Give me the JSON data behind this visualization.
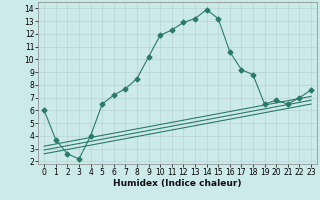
{
  "xlabel": "Humidex (Indice chaleur)",
  "ylabel": "",
  "xlim": [
    -0.5,
    23.5
  ],
  "ylim": [
    1.8,
    14.5
  ],
  "xticks": [
    0,
    1,
    2,
    3,
    4,
    5,
    6,
    7,
    8,
    9,
    10,
    11,
    12,
    13,
    14,
    15,
    16,
    17,
    18,
    19,
    20,
    21,
    22,
    23
  ],
  "yticks": [
    2,
    3,
    4,
    5,
    6,
    7,
    8,
    9,
    10,
    11,
    12,
    13,
    14
  ],
  "bg_color": "#cdeaea",
  "grid_color": "#b8d4d4",
  "line_color": "#2a7a6a",
  "main_curve_x": [
    0,
    1,
    2,
    3,
    4,
    5,
    6,
    7,
    8,
    9,
    10,
    11,
    12,
    13,
    14,
    15,
    16,
    17,
    18,
    19,
    20,
    21,
    22,
    23
  ],
  "main_curve_y": [
    6.0,
    3.7,
    2.6,
    2.2,
    4.0,
    6.5,
    7.2,
    7.7,
    8.5,
    10.2,
    11.9,
    12.3,
    12.9,
    13.2,
    13.9,
    13.2,
    10.6,
    9.2,
    8.8,
    6.5,
    6.8,
    6.5,
    7.0,
    7.6
  ],
  "straight_lines": [
    {
      "x": [
        0,
        23
      ],
      "y": [
        2.6,
        6.5
      ]
    },
    {
      "x": [
        0,
        23
      ],
      "y": [
        2.9,
        6.8
      ]
    },
    {
      "x": [
        0,
        23
      ],
      "y": [
        3.2,
        7.1
      ]
    }
  ],
  "marker": "D",
  "marker_size": 2.5,
  "linewidth": 0.8
}
